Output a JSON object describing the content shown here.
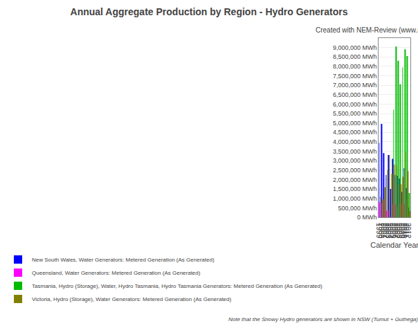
{
  "chart_data": {
    "type": "bar",
    "title": "Annual Aggregate Production by Region - Hydro Generators",
    "subtitle": "Created with NEM-Review (www.nem-review.info)",
    "xlabel": "Calendar Year",
    "footnote": "Note that the Snowy Hydro generators are shown in NSW (Tumut + Guthega) and VIC (Murray) since 1999, for ease of comparability.",
    "categories": [
      "1999",
      "2000",
      "2001",
      "2002",
      "2003",
      "2004",
      "2005",
      "2006",
      "2007",
      "2008",
      "2009",
      "2010",
      "2011",
      "2012"
    ],
    "series": [
      {
        "name": "New South Wales, Water Generators: Metered Generation (As Generated)",
        "color": "#0000ff",
        "values": [
          3950000,
          4950000,
          3400000,
          2250000,
          3300000,
          1500000,
          3100000,
          2250000,
          2200000,
          2050000,
          1350000,
          2600000,
          1550000,
          500000
        ]
      },
      {
        "name": "Queensland, Water Generators: Metered Generation (As Generated)",
        "color": "#ff00ff",
        "values": [
          800000,
          750000,
          950000,
          350000,
          380000,
          0,
          700000,
          700000,
          570000,
          750000,
          720000,
          680000,
          950000,
          100000
        ]
      },
      {
        "name": "Tasmania, Hydro (Storage), Water, Hydro Tasmania, Hydro Tasmania Generators: Metered Generation (As Generated)",
        "color": "#00bb00",
        "values": [
          0,
          0,
          0,
          0,
          0,
          0,
          5700000,
          9050000,
          8300000,
          7050000,
          7950000,
          8900000,
          8550000,
          1280000
        ]
      },
      {
        "name": "Victoria, Hydro (Storage), Water Generators: Metered Generation (As Generated)",
        "color": "#808000",
        "values": [
          1100000,
          950000,
          1600000,
          2500000,
          3300000,
          2300000,
          2800000,
          2750000,
          1750000,
          1750000,
          2150000,
          3450000,
          2450000,
          320000
        ]
      }
    ],
    "ylim": [
      0,
      9500000
    ],
    "yticks": [
      {
        "value": 0,
        "label": "0 MWh"
      },
      {
        "value": 500000,
        "label": "500,000 MWh"
      },
      {
        "value": 1000000,
        "label": "1,000,000 MWh"
      },
      {
        "value": 1500000,
        "label": "1,500,000 MWh"
      },
      {
        "value": 2000000,
        "label": "2,000,000 MWh"
      },
      {
        "value": 2500000,
        "label": "2,500,000 MWh"
      },
      {
        "value": 3000000,
        "label": "3,000,000 MWh"
      },
      {
        "value": 3500000,
        "label": "3,500,000 MWh"
      },
      {
        "value": 4000000,
        "label": "4,000,000 MWh"
      },
      {
        "value": 4500000,
        "label": "4,500,000 MWh"
      },
      {
        "value": 5000000,
        "label": "5,000,000 MWh"
      },
      {
        "value": 5500000,
        "label": "5,500,000 MWh"
      },
      {
        "value": 6000000,
        "label": "6,000,000 MWh"
      },
      {
        "value": 6500000,
        "label": "6,500,000 MWh"
      },
      {
        "value": 7000000,
        "label": "7,000,000 MWh"
      },
      {
        "value": 7500000,
        "label": "7,500,000 MWh"
      },
      {
        "value": 8000000,
        "label": "8,000,000 MWh"
      },
      {
        "value": 8500000,
        "label": "8,500,000 MWh"
      },
      {
        "value": 9000000,
        "label": "9,000,000 MWh"
      }
    ],
    "grid": true,
    "legend": "bottom"
  }
}
